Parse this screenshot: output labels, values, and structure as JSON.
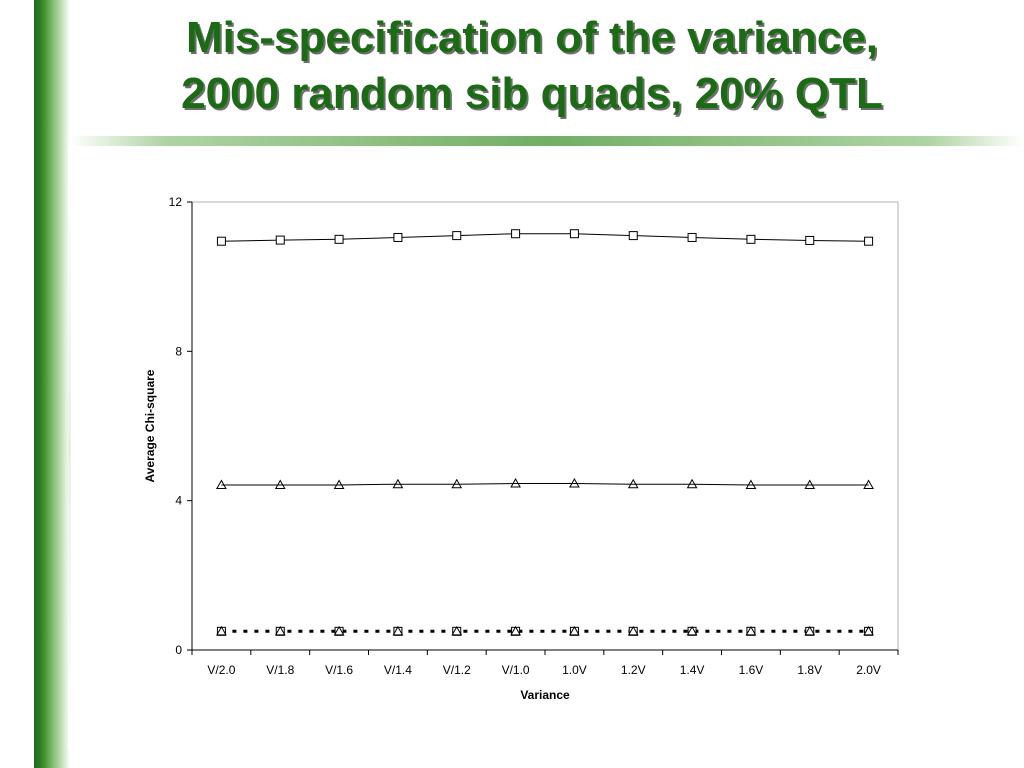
{
  "slide": {
    "title_line1": "Mis-specification of the variance,",
    "title_line2": "2000 random sib quads, 20% QTL",
    "accent_color": "#1b6b14"
  },
  "chart_data": {
    "type": "line",
    "xlabel": "Variance",
    "ylabel": "Average Chi-square",
    "categories": [
      "V/2.0",
      "V/1.8",
      "V/1.6",
      "V/1.4",
      "V/1.2",
      "V/1.0",
      "1.0V",
      "1.2V",
      "1.4V",
      "1.6V",
      "1.8V",
      "2.0V"
    ],
    "ylim": [
      0,
      12
    ],
    "yticks": [
      0,
      4,
      8,
      12
    ],
    "grid": false,
    "series": [
      {
        "marker": "square",
        "line": "solid",
        "values": [
          10.95,
          10.98,
          11.0,
          11.05,
          11.1,
          11.15,
          11.15,
          11.1,
          11.05,
          11.0,
          10.97,
          10.95
        ]
      },
      {
        "marker": "triangle",
        "line": "solid",
        "values": [
          4.42,
          4.42,
          4.42,
          4.44,
          4.44,
          4.46,
          4.46,
          4.44,
          4.44,
          4.42,
          4.42,
          4.42
        ]
      },
      {
        "marker": "square",
        "line": "dotted",
        "values": [
          0.5,
          0.5,
          0.5,
          0.5,
          0.5,
          0.5,
          0.5,
          0.5,
          0.5,
          0.5,
          0.5,
          0.5
        ]
      },
      {
        "marker": "triangle",
        "line": "none",
        "values": [
          0.5,
          0.5,
          0.5,
          0.5,
          0.5,
          0.5,
          0.5,
          0.5,
          0.5,
          0.5,
          0.5,
          0.5
        ]
      }
    ]
  }
}
